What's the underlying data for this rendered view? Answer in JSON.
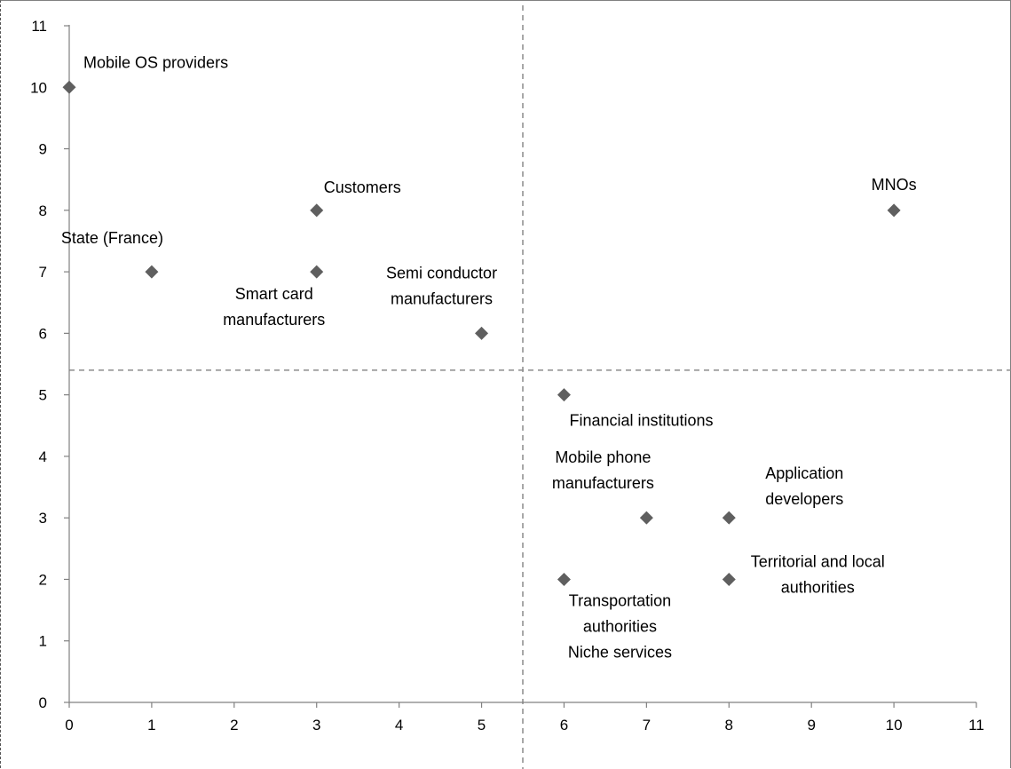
{
  "chart_data": {
    "type": "scatter",
    "title": "",
    "xlabel": "",
    "ylabel": "",
    "xlim": [
      0,
      11
    ],
    "ylim": [
      0,
      11
    ],
    "xticks": [
      0,
      1,
      2,
      3,
      4,
      5,
      6,
      7,
      8,
      9,
      10,
      11
    ],
    "yticks": [
      0,
      1,
      2,
      3,
      4,
      5,
      6,
      7,
      8,
      9,
      10,
      11
    ],
    "grid": false,
    "marker": "diamond",
    "marker_color": "#5f5f5f",
    "quadrant_lines": {
      "x": 5.5,
      "y": 5.4,
      "style": "dashed",
      "color": "#8c8c8c"
    },
    "points": [
      {
        "x": 0,
        "y": 10,
        "label": [
          "Mobile OS providers"
        ]
      },
      {
        "x": 3,
        "y": 8,
        "label": [
          "Customers"
        ]
      },
      {
        "x": 1,
        "y": 7,
        "label": [
          "State (France)"
        ]
      },
      {
        "x": 3,
        "y": 7,
        "label": [
          "Smart card",
          "manufacturers"
        ]
      },
      {
        "x": 5,
        "y": 6,
        "label": [
          "Semi conductor",
          "manufacturers"
        ]
      },
      {
        "x": 10,
        "y": 8,
        "label": [
          "MNOs"
        ]
      },
      {
        "x": 6,
        "y": 5,
        "label": [
          "Financial institutions"
        ]
      },
      {
        "x": 7,
        "y": 3,
        "label": [
          "Mobile phone",
          "manufacturers"
        ]
      },
      {
        "x": 8,
        "y": 3,
        "label": [
          "Application",
          "developers"
        ]
      },
      {
        "x": 8,
        "y": 2,
        "label": [
          "Territorial and local",
          "authorities"
        ]
      },
      {
        "x": 6,
        "y": 2,
        "label": [
          "Transportation",
          "authorities",
          "Niche services"
        ]
      }
    ]
  }
}
